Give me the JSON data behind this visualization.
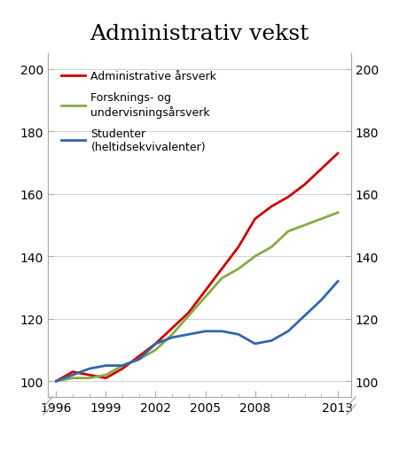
{
  "title": "Administrativ vekst",
  "years": [
    1996,
    1997,
    1998,
    1999,
    2000,
    2001,
    2002,
    2003,
    2004,
    2005,
    2006,
    2007,
    2008,
    2009,
    2010,
    2011,
    2012,
    2013
  ],
  "admin": [
    100,
    103,
    102,
    101,
    104,
    108,
    112,
    117,
    122,
    129,
    136,
    143,
    152,
    156,
    159,
    163,
    168,
    173
  ],
  "research": [
    100,
    101,
    101,
    102,
    105,
    107,
    110,
    115,
    121,
    127,
    133,
    136,
    140,
    143,
    148,
    150,
    152,
    154
  ],
  "students": [
    100,
    102,
    104,
    105,
    105,
    107,
    112,
    114,
    115,
    116,
    116,
    115,
    112,
    113,
    116,
    121,
    126,
    132
  ],
  "admin_color": "#cc0000",
  "research_color": "#88aa44",
  "students_color": "#3366aa",
  "ylim": [
    95,
    205
  ],
  "yticks": [
    100,
    120,
    140,
    160,
    180,
    200
  ],
  "xlim": [
    1995.5,
    2013.8
  ],
  "xticks": [
    1996,
    1999,
    2002,
    2005,
    2008,
    2013
  ],
  "legend_admin": "Administrative årsverk",
  "legend_research": "Forsknings- og\nundervisningsårsverk",
  "legend_students": "Studenter\n(heltidsekvivalenter)",
  "linewidth": 2.0,
  "background_color": "#ffffff",
  "spine_color": "#aaaaaa",
  "grid_color": "#cccccc",
  "title_fontsize": 18,
  "tick_fontsize": 10,
  "legend_fontsize": 9
}
